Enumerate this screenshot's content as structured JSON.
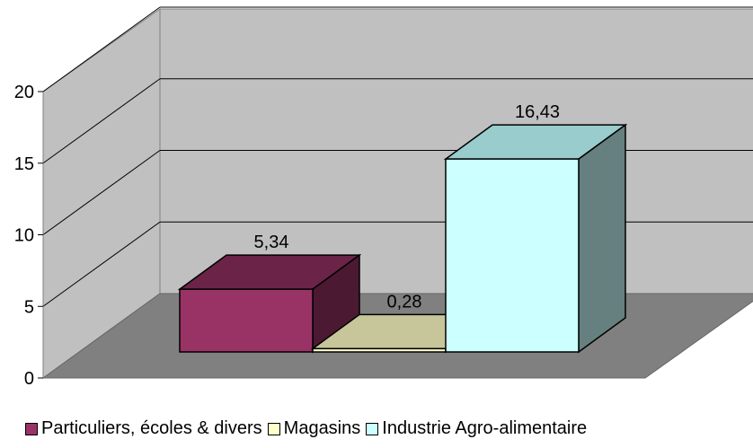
{
  "chart_data": {
    "type": "bar",
    "categories": [
      "Particuliers, écoles & divers",
      "Magasins",
      "Industrie Agro-alimentaire"
    ],
    "values": [
      5.34,
      0.28,
      16.43
    ],
    "value_labels": [
      "5,34",
      "0,28",
      "16,43"
    ],
    "y_ticks": [
      "0",
      "5",
      "10",
      "15",
      "20"
    ],
    "ylim": [
      0,
      20
    ],
    "grid": true,
    "legend_position": "bottom",
    "three_d": true,
    "colors": [
      {
        "front": "#993366",
        "top": "#6b2347",
        "side": "#4c1933"
      },
      {
        "front": "#ffffcc",
        "top": "#c6c69a",
        "side": "#8e8e6e"
      },
      {
        "front": "#ccffff",
        "top": "#99cccc",
        "side": "#668080"
      }
    ],
    "wall_color": "#c0c0c0",
    "floor_color": "#808080"
  }
}
